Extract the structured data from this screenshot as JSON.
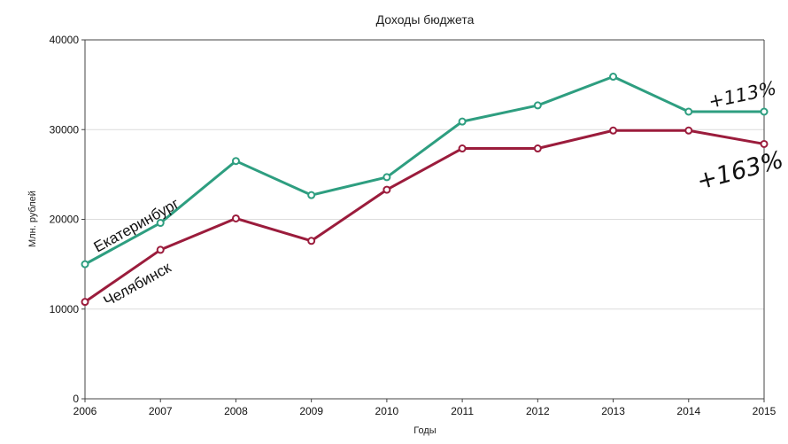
{
  "chart_data": {
    "type": "line",
    "title": "Доходы бюджета",
    "xlabel": "Годы",
    "ylabel": "Млн. рублей",
    "x": [
      "2006",
      "2007",
      "2008",
      "2009",
      "2010",
      "2011",
      "2012",
      "2013",
      "2014",
      "2015"
    ],
    "ylim": [
      0,
      40000
    ],
    "yticks": [
      0,
      10000,
      20000,
      30000,
      40000
    ],
    "ytick_labels": [
      "0",
      "10000",
      "20000",
      "30000",
      "40000"
    ],
    "grid": true,
    "series": [
      {
        "name": "Екатеринбург",
        "color": "#2e9e80",
        "values": [
          15000,
          19600,
          26500,
          22700,
          24700,
          30900,
          32700,
          35900,
          32000,
          32000
        ],
        "annotation": "+113%"
      },
      {
        "name": "Челябинск",
        "color": "#9b1c3c",
        "values": [
          10800,
          16600,
          20100,
          17600,
          23300,
          27900,
          27900,
          29900,
          29900,
          28400
        ],
        "annotation": "+163%"
      }
    ]
  }
}
